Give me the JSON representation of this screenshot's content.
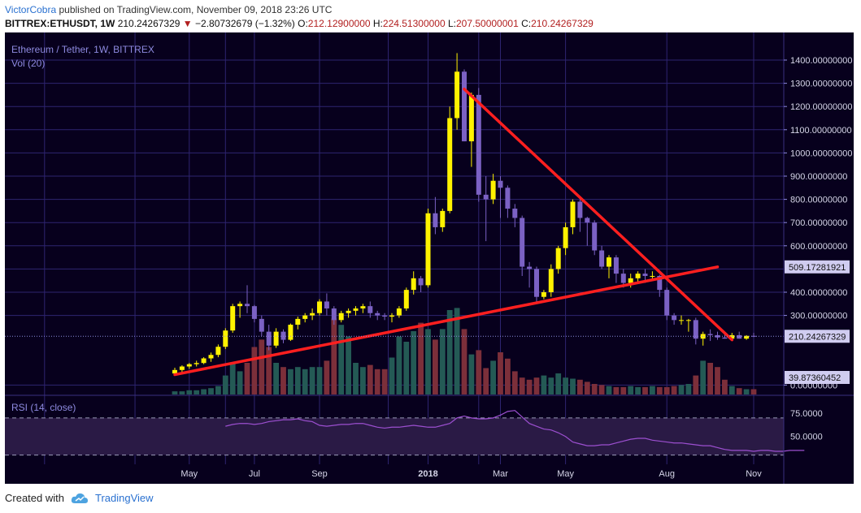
{
  "header": {
    "author": "VictorCobra",
    "published_text": "published on TradingView.com, November 09, 2018 23:26 UTC",
    "symbol": "BITTREX:ETHUSDT, 1W",
    "last": "210.24267329",
    "change_arrow": "▼",
    "change": "−2.80732679 (−1.32%)",
    "o_label": "O:",
    "o_value": "212.12900000",
    "h_label": "H:",
    "h_value": "224.51300000",
    "l_label": "L:",
    "l_value": "207.50000001",
    "c_label": "C:",
    "c_value": "210.24267329"
  },
  "legend": {
    "title": "Ethereum / Tether, 1W, BITTREX",
    "volume_label": "Vol (20)",
    "rsi_label": "RSI (14, close)"
  },
  "footer": {
    "created_with": "Created with",
    "brand": "TradingView",
    "logo_icon": "tradingview-cloud-icon"
  },
  "colors": {
    "bg": "#07001d",
    "grid": "#2e2470",
    "up": "#fff200",
    "down": "#7b61c4",
    "vol_up": "#245a55",
    "vol_down": "#7c2f3a",
    "trendline": "#ff1f1f",
    "rsi_line": "#9c4fd0",
    "rsi_band": "#2a1a45",
    "label_bg": "#d0ccf0",
    "axis_text": "#d6d6e8"
  },
  "chart_data": {
    "type": "candlestick",
    "title": "Ethereum / Tether, 1W, BITTREX",
    "x_axis_labels": [
      "May",
      "Jul",
      "Sep",
      "2018",
      "Mar",
      "May",
      "Aug",
      "Nov"
    ],
    "x_axis_label_weeks": [
      2,
      11,
      20,
      35,
      45,
      54,
      68,
      80
    ],
    "y_price_ticks": [
      "1400.00000000",
      "1300.00000000",
      "1200.00000000",
      "1100.00000000",
      "1000.00000000",
      "900.00000000",
      "800.00000000",
      "700.00000000",
      "600.00000000",
      "400.00000000",
      "300.00000000",
      "0.00000000"
    ],
    "y_price_tick_values": [
      1400,
      1300,
      1200,
      1100,
      1000,
      900,
      800,
      700,
      600,
      400,
      300,
      0
    ],
    "y_rsi_ticks": [
      "75.0000",
      "50.0000"
    ],
    "y_rsi_tick_values": [
      75,
      50
    ],
    "price_range": [
      0,
      1420
    ],
    "rsi_range": [
      20,
      90
    ],
    "rsi_band": [
      30,
      70
    ],
    "last_price_label": "210.24267329",
    "last_price": 210.24,
    "resistance_label": "509.17281921",
    "resistance_price": 509.17,
    "volume_label": "39.87360452",
    "candles": [
      [
        50,
        75,
        45,
        65
      ],
      [
        65,
        85,
        55,
        80
      ],
      [
        80,
        95,
        70,
        90
      ],
      [
        90,
        105,
        80,
        95
      ],
      [
        95,
        120,
        90,
        115
      ],
      [
        115,
        140,
        100,
        130
      ],
      [
        130,
        175,
        120,
        165
      ],
      [
        165,
        245,
        155,
        235
      ],
      [
        235,
        350,
        225,
        340
      ],
      [
        340,
        360,
        290,
        350
      ],
      [
        350,
        430,
        310,
        340
      ],
      [
        340,
        345,
        270,
        285
      ],
      [
        285,
        300,
        210,
        230
      ],
      [
        230,
        260,
        150,
        170
      ],
      [
        170,
        245,
        160,
        230
      ],
      [
        230,
        240,
        180,
        195
      ],
      [
        195,
        265,
        190,
        260
      ],
      [
        260,
        295,
        240,
        285
      ],
      [
        285,
        310,
        270,
        300
      ],
      [
        300,
        330,
        280,
        310
      ],
      [
        310,
        370,
        300,
        360
      ],
      [
        360,
        395,
        300,
        330
      ],
      [
        330,
        340,
        260,
        280
      ],
      [
        280,
        320,
        270,
        310
      ],
      [
        310,
        330,
        290,
        320
      ],
      [
        320,
        340,
        300,
        330
      ],
      [
        330,
        350,
        310,
        340
      ],
      [
        340,
        360,
        290,
        310
      ],
      [
        310,
        320,
        280,
        300
      ],
      [
        300,
        310,
        280,
        295
      ],
      [
        295,
        310,
        270,
        300
      ],
      [
        300,
        340,
        290,
        330
      ],
      [
        330,
        420,
        320,
        410
      ],
      [
        410,
        490,
        390,
        460
      ],
      [
        460,
        470,
        400,
        430
      ],
      [
        430,
        760,
        420,
        740
      ],
      [
        740,
        810,
        650,
        680
      ],
      [
        680,
        760,
        660,
        750
      ],
      [
        750,
        1200,
        740,
        1150
      ],
      [
        1150,
        1430,
        1100,
        1350
      ],
      [
        1350,
        1360,
        1050,
        1050
      ],
      [
        1050,
        1260,
        940,
        1250
      ],
      [
        1250,
        1280,
        790,
        820
      ],
      [
        820,
        900,
        620,
        800
      ],
      [
        800,
        910,
        780,
        880
      ],
      [
        880,
        900,
        720,
        850
      ],
      [
        850,
        860,
        720,
        760
      ],
      [
        760,
        780,
        680,
        720
      ],
      [
        720,
        730,
        470,
        510
      ],
      [
        510,
        530,
        420,
        500
      ],
      [
        500,
        510,
        360,
        380
      ],
      [
        380,
        410,
        370,
        400
      ],
      [
        400,
        520,
        380,
        500
      ],
      [
        500,
        600,
        480,
        590
      ],
      [
        590,
        700,
        560,
        680
      ],
      [
        680,
        800,
        650,
        790
      ],
      [
        790,
        800,
        660,
        720
      ],
      [
        720,
        725,
        600,
        700
      ],
      [
        700,
        710,
        560,
        580
      ],
      [
        580,
        600,
        500,
        510
      ],
      [
        510,
        560,
        460,
        550
      ],
      [
        550,
        560,
        440,
        480
      ],
      [
        480,
        500,
        420,
        440
      ],
      [
        440,
        480,
        420,
        460
      ],
      [
        460,
        490,
        440,
        480
      ],
      [
        480,
        500,
        440,
        470
      ],
      [
        470,
        490,
        450,
        470
      ],
      [
        470,
        475,
        380,
        410
      ],
      [
        410,
        420,
        280,
        300
      ],
      [
        300,
        310,
        260,
        280
      ],
      [
        280,
        300,
        260,
        280
      ],
      [
        280,
        285,
        230,
        280
      ],
      [
        280,
        290,
        175,
        200
      ],
      [
        200,
        230,
        170,
        220
      ],
      [
        220,
        240,
        190,
        215
      ],
      [
        215,
        230,
        195,
        205
      ],
      [
        205,
        220,
        200,
        200
      ],
      [
        200,
        225,
        195,
        215
      ],
      [
        215,
        230,
        200,
        200
      ],
      [
        200,
        215,
        195,
        212
      ],
      [
        212,
        225,
        207,
        210
      ]
    ],
    "volume_relative": [
      0.03,
      0.03,
      0.04,
      0.04,
      0.05,
      0.06,
      0.08,
      0.18,
      0.3,
      0.22,
      0.3,
      0.45,
      0.52,
      0.45,
      0.3,
      0.26,
      0.24,
      0.26,
      0.24,
      0.26,
      0.26,
      0.32,
      0.72,
      0.66,
      0.55,
      0.3,
      0.26,
      0.28,
      0.24,
      0.24,
      0.35,
      0.55,
      0.5,
      0.6,
      0.68,
      0.62,
      0.52,
      0.62,
      0.8,
      0.82,
      0.62,
      0.38,
      0.42,
      0.25,
      0.32,
      0.4,
      0.34,
      0.22,
      0.16,
      0.14,
      0.16,
      0.18,
      0.16,
      0.2,
      0.16,
      0.15,
      0.14,
      0.12,
      0.1,
      0.09,
      0.08,
      0.07,
      0.07,
      0.08,
      0.07,
      0.07,
      0.08,
      0.07,
      0.07,
      0.08,
      0.09,
      0.1,
      0.18,
      0.32,
      0.3,
      0.26,
      0.14,
      0.08,
      0.06,
      0.05,
      0.05
    ],
    "rsi": [
      61,
      63,
      64,
      64,
      63,
      64,
      66,
      67,
      68,
      68,
      69,
      67,
      66,
      62,
      61,
      62,
      63,
      63,
      64,
      64,
      62,
      60,
      59,
      60,
      60,
      61,
      62,
      61,
      60,
      60,
      62,
      64,
      70,
      72,
      70,
      69,
      69,
      70,
      73,
      77,
      78,
      71,
      64,
      61,
      58,
      57,
      54,
      50,
      44,
      42,
      40,
      40,
      41,
      41,
      43,
      45,
      47,
      48,
      48,
      46,
      45,
      44,
      43,
      43,
      42,
      41,
      40,
      40,
      38,
      36,
      35,
      35,
      35,
      34,
      35,
      35,
      34,
      34,
      35,
      35,
      35
    ],
    "trendlines": [
      {
        "from_week": 0,
        "from_price": 45,
        "to_week": 75,
        "to_price": 509
      },
      {
        "from_week": 40,
        "from_price": 1275,
        "to_week": 77,
        "to_price": 195
      }
    ]
  }
}
